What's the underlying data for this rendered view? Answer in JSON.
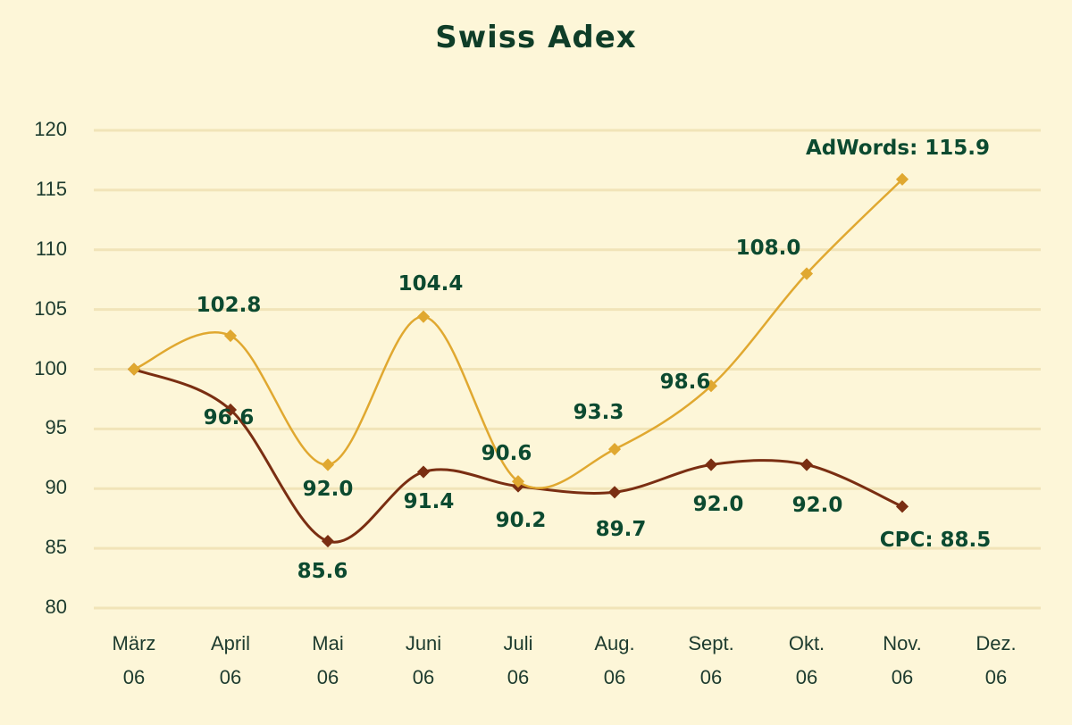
{
  "title": "Swiss Adex",
  "chart_data": {
    "type": "line",
    "title": "Swiss Adex",
    "xlabel": "",
    "ylabel": "",
    "ylim": [
      80,
      120
    ],
    "yticks": [
      80,
      85,
      90,
      95,
      100,
      105,
      110,
      115,
      120
    ],
    "grid": true,
    "legend": "none (end-of-line labels)",
    "categories": [
      "März 06",
      "April 06",
      "Mai 06",
      "Juni 06",
      "Juli 06",
      "Aug. 06",
      "Sept. 06",
      "Okt. 06",
      "Nov. 06",
      "Dez. 06"
    ],
    "series": [
      {
        "name": "AdWords",
        "color": "#e0a830",
        "values": [
          100,
          102.8,
          92.0,
          104.4,
          90.6,
          93.3,
          98.6,
          108.0,
          115.9,
          null
        ],
        "end_label": "AdWords: 115.9"
      },
      {
        "name": "CPC",
        "color": "#7a2e12",
        "values": [
          100,
          96.6,
          85.6,
          91.4,
          90.2,
          89.7,
          92.0,
          92.0,
          88.5,
          null
        ],
        "end_label": "CPC: 88.5"
      }
    ]
  },
  "xticks": [
    {
      "line1": "März",
      "line2": "06"
    },
    {
      "line1": "April",
      "line2": "06"
    },
    {
      "line1": "Mai",
      "line2": "06"
    },
    {
      "line1": "Juni",
      "line2": "06"
    },
    {
      "line1": "Juli",
      "line2": "06"
    },
    {
      "line1": "Aug.",
      "line2": "06"
    },
    {
      "line1": "Sept.",
      "line2": "06"
    },
    {
      "line1": "Okt.",
      "line2": "06"
    },
    {
      "line1": "Nov.",
      "line2": "06"
    },
    {
      "line1": "Dez.",
      "line2": "06"
    }
  ],
  "labels": {
    "adwords": [
      "",
      "102.8",
      "92.0",
      "104.4",
      "90.6",
      "93.3",
      "98.6",
      "108.0",
      "AdWords: 115.9"
    ],
    "cpc": [
      "",
      "96.6",
      "85.6",
      "91.4",
      "90.2",
      "89.7",
      "92.0",
      "92.0",
      "CPC: 88.5"
    ]
  }
}
